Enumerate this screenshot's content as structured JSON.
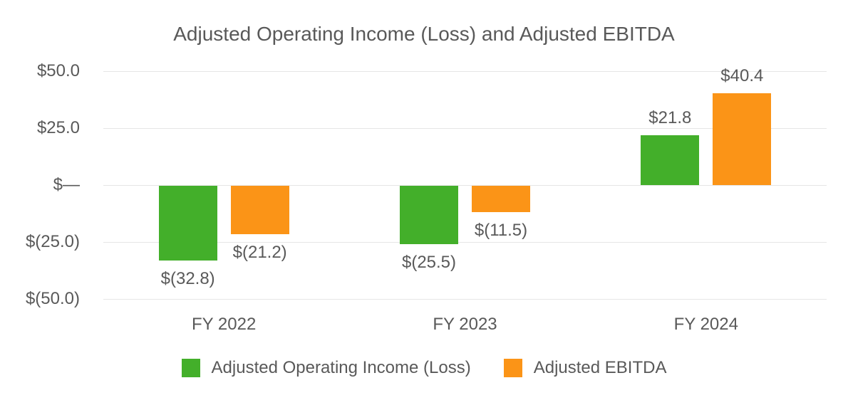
{
  "chart_data": {
    "type": "bar",
    "title": "Adjusted Operating Income (Loss) and Adjusted EBITDA",
    "categories": [
      "FY 2022",
      "FY 2023",
      "FY 2024"
    ],
    "series": [
      {
        "name": "Adjusted Operating Income (Loss)",
        "color": "#43AF2A",
        "values": [
          -32.8,
          -25.5,
          21.8
        ],
        "labels": [
          "$(32.8)",
          "$(25.5)",
          "$21.8"
        ]
      },
      {
        "name": "Adjusted EBITDA",
        "color": "#FB9417",
        "values": [
          -21.2,
          -11.5,
          40.4
        ],
        "labels": [
          "$(21.2)",
          "$(11.5)",
          "$40.4"
        ]
      }
    ],
    "xlabel": "",
    "ylabel": "",
    "ylim": [
      -50,
      50
    ],
    "yticks": [
      {
        "value": 50,
        "label": "$50.0"
      },
      {
        "value": 25,
        "label": "$25.0"
      },
      {
        "value": 0,
        "label": "$—"
      },
      {
        "value": -25,
        "label": "$(25.0)"
      },
      {
        "value": -50,
        "label": "$(50.0)"
      }
    ],
    "grid": true,
    "legend_position": "bottom"
  },
  "colors": {
    "text": "#595959",
    "gridline": "#e6e6e6",
    "background": "#ffffff",
    "series_green": "#43AF2A",
    "series_orange": "#FB9417"
  }
}
